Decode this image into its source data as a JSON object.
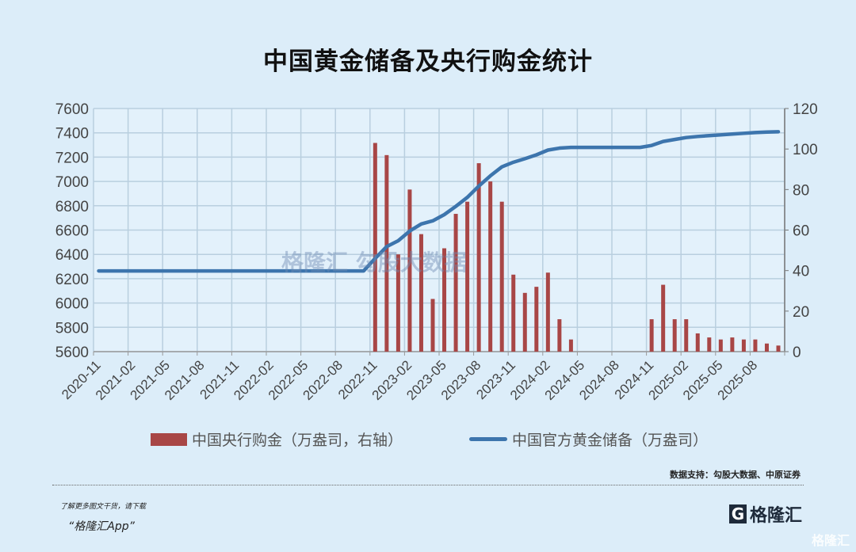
{
  "chart_data": {
    "type": "bar+line",
    "title": "中国黄金储备及央行购金统计",
    "categories": [
      "2020-11",
      "2020-12",
      "2021-01",
      "2021-02",
      "2021-03",
      "2021-04",
      "2021-05",
      "2021-06",
      "2021-07",
      "2021-08",
      "2021-09",
      "2021-10",
      "2021-11",
      "2021-12",
      "2022-01",
      "2022-02",
      "2022-03",
      "2022-04",
      "2022-05",
      "2022-06",
      "2022-07",
      "2022-08",
      "2022-09",
      "2022-10",
      "2022-11",
      "2022-12",
      "2023-01",
      "2023-02",
      "2023-03",
      "2023-04",
      "2023-05",
      "2023-06",
      "2023-07",
      "2023-08",
      "2023-09",
      "2023-10",
      "2023-11",
      "2023-12",
      "2024-01",
      "2024-02",
      "2024-03",
      "2024-04",
      "2024-05",
      "2024-06",
      "2024-07",
      "2024-08",
      "2024-09",
      "2024-10",
      "2024-11",
      "2024-12",
      "2025-01",
      "2025-02",
      "2025-03",
      "2025-04",
      "2025-05",
      "2025-06",
      "2025-07",
      "2025-08",
      "2025-09",
      "2025-10"
    ],
    "tick_labels": [
      "2020-11",
      "2021-02",
      "2021-05",
      "2021-08",
      "2021-11",
      "2022-02",
      "2022-05",
      "2022-08",
      "2022-11",
      "2023-02",
      "2023-05",
      "2023-08",
      "2023-11",
      "2024-02",
      "2024-05",
      "2024-08",
      "2024-11",
      "2025-02",
      "2025-05",
      "2025-08"
    ],
    "series": [
      {
        "name": "中国央行购金（万盎司，右轴）",
        "type": "bar",
        "axis": "right",
        "color": "#a84646",
        "values": [
          null,
          null,
          null,
          null,
          null,
          null,
          null,
          null,
          null,
          null,
          null,
          null,
          null,
          null,
          null,
          null,
          null,
          null,
          null,
          null,
          null,
          null,
          null,
          null,
          103,
          97,
          48,
          80,
          58,
          26,
          51,
          68,
          74,
          93,
          84,
          74,
          38,
          29,
          32,
          39,
          16,
          6,
          null,
          null,
          null,
          null,
          null,
          null,
          16,
          33,
          16,
          16,
          9,
          7,
          6,
          7,
          6,
          6,
          4,
          3
        ]
      },
      {
        "name": "中国官方黄金储备（万盎司）",
        "type": "line",
        "axis": "left",
        "color": "#3d75ad",
        "values": [
          6264,
          6264,
          6264,
          6264,
          6264,
          6264,
          6264,
          6264,
          6264,
          6264,
          6264,
          6264,
          6264,
          6264,
          6264,
          6264,
          6264,
          6264,
          6264,
          6264,
          6264,
          6264,
          6264,
          6264,
          6367,
          6464,
          6512,
          6592,
          6650,
          6676,
          6727,
          6795,
          6869,
          6962,
          7046,
          7120,
          7158,
          7187,
          7219,
          7258,
          7274,
          7280,
          7280,
          7280,
          7280,
          7280,
          7280,
          7280,
          7296,
          7329,
          7345,
          7361,
          7370,
          7377,
          7383,
          7390,
          7396,
          7402,
          7406,
          7409
        ]
      }
    ],
    "y_left": {
      "min": 5600,
      "max": 7600,
      "step": 200,
      "ticks": [
        "5600",
        "5800",
        "6000",
        "6200",
        "6400",
        "6600",
        "6800",
        "7000",
        "7200",
        "7400",
        "7600"
      ]
    },
    "y_right": {
      "min": 0,
      "max": 120,
      "step": 20,
      "ticks": [
        "0",
        "20",
        "40",
        "60",
        "80",
        "100",
        "120"
      ]
    },
    "grid": true,
    "legend_position": "bottom"
  },
  "source": "数据支持：勾股大数据、中原证券",
  "watermark": "格隆汇 勾股大数据",
  "promo": {
    "line1": "了解更多图文干货，请下载",
    "line2": "“格隆汇App”"
  },
  "logo": {
    "mark": "G",
    "text": "格隆汇"
  },
  "corner_watermark": "格隆汇"
}
